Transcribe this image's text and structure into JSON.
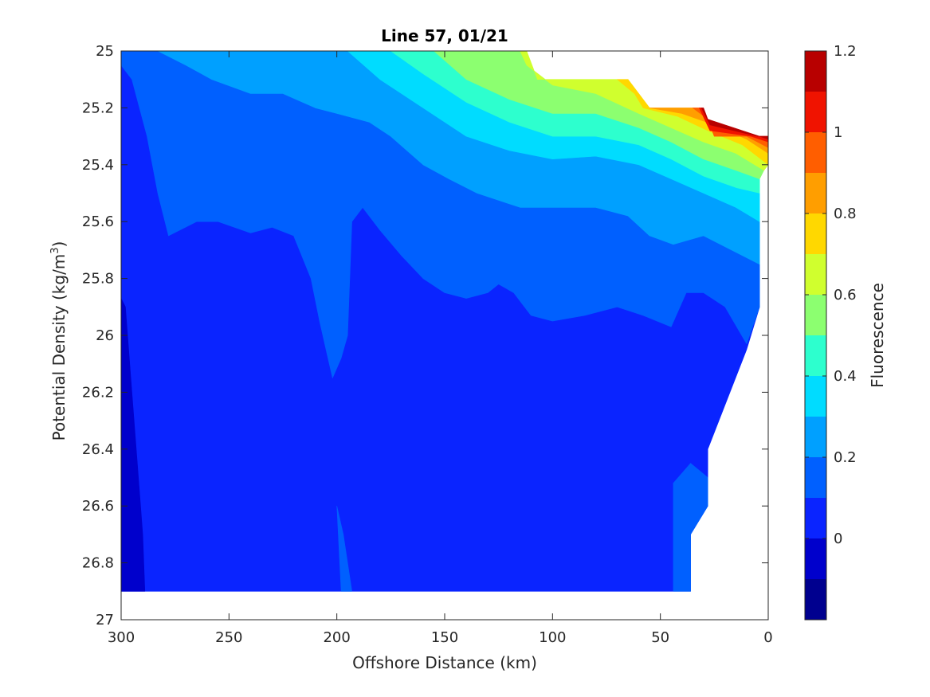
{
  "chart_data": {
    "type": "contour",
    "title": "Line 57, 01/21",
    "xlabel": "Offshore Distance (km)",
    "ylabel_main": "Potential Density (kg/m",
    "ylabel_sup": "3",
    "ylabel_end": ")",
    "colorbar_label": "Fluorescence",
    "xlim": [
      300,
      0
    ],
    "ylim": [
      25,
      27
    ],
    "x_reversed": true,
    "y_reversed": true,
    "x_ticks": [
      300,
      250,
      200,
      150,
      100,
      50,
      0
    ],
    "x_tick_labels": [
      "300",
      "250",
      "200",
      "150",
      "100",
      "50",
      "0"
    ],
    "y_ticks": [
      25,
      25.2,
      25.4,
      25.6,
      25.8,
      26,
      26.2,
      26.4,
      26.6,
      26.8,
      27
    ],
    "y_tick_labels": [
      "25",
      "25.2",
      "25.4",
      "25.6",
      "25.8",
      "26",
      "26.2",
      "26.4",
      "26.6",
      "26.8",
      "27"
    ],
    "colorbar_range": [
      -0.2,
      1.2
    ],
    "colorbar_ticks": [
      0,
      0.2,
      0.4,
      0.6,
      0.8,
      1,
      1.2
    ],
    "colorbar_tick_labels": [
      "0",
      "0.2",
      "0.4",
      "0.6",
      "0.8",
      "1",
      "1.2"
    ],
    "levels": [
      -0.2,
      -0.1,
      0,
      0.1,
      0.2,
      0.3,
      0.4,
      0.5,
      0.6,
      0.7,
      0.8,
      0.9,
      1.0,
      1.1,
      1.2
    ],
    "colormap": [
      "#00008f",
      "#0000cc",
      "#0a24ff",
      "#0060ff",
      "#00a0ff",
      "#00dcff",
      "#2dffce",
      "#8cff70",
      "#d0ff2e",
      "#ffd800",
      "#ff9e00",
      "#ff5e00",
      "#f01300",
      "#b80000"
    ],
    "data_boundary": [
      [
        300,
        25.0
      ],
      [
        205,
        25.0
      ],
      [
        202,
        25.0
      ],
      [
        195,
        25.0
      ],
      [
        145,
        25.0
      ],
      [
        112,
        25.0
      ],
      [
        107,
        25.1
      ],
      [
        65,
        25.1
      ],
      [
        55,
        25.2
      ],
      [
        30,
        25.2
      ],
      [
        25,
        25.3
      ],
      [
        0,
        25.3
      ],
      [
        0,
        25.4
      ],
      [
        4,
        25.5
      ],
      [
        4,
        25.9
      ],
      [
        10,
        26.05
      ],
      [
        28,
        26.4
      ],
      [
        28,
        26.6
      ],
      [
        36,
        26.7
      ],
      [
        36,
        26.9
      ],
      [
        300,
        26.9
      ]
    ],
    "regions": [
      {
        "level": 0.05,
        "points": [
          [
            300,
            25.0
          ],
          [
            283,
            25.0
          ],
          [
            270,
            25.05
          ],
          [
            258,
            25.1
          ],
          [
            240,
            25.15
          ],
          [
            225,
            25.15
          ],
          [
            210,
            25.2
          ],
          [
            200,
            25.22
          ],
          [
            185,
            25.25
          ],
          [
            175,
            25.3
          ],
          [
            160,
            25.4
          ],
          [
            148,
            25.45
          ],
          [
            135,
            25.5
          ],
          [
            115,
            25.55
          ],
          [
            100,
            25.55
          ],
          [
            80,
            25.55
          ],
          [
            65,
            25.58
          ],
          [
            55,
            25.65
          ],
          [
            44,
            25.68
          ],
          [
            30,
            25.65
          ],
          [
            4,
            25.75
          ],
          [
            4,
            25.9
          ],
          [
            10,
            26.05
          ],
          [
            28,
            26.4
          ],
          [
            28,
            26.6
          ],
          [
            36,
            26.7
          ],
          [
            36,
            26.9
          ],
          [
            300,
            26.9
          ]
        ]
      },
      {
        "level": -0.05,
        "points": [
          [
            300,
            25.87
          ],
          [
            300,
            26.9
          ],
          [
            289,
            26.9
          ],
          [
            290,
            26.7
          ],
          [
            292,
            26.5
          ],
          [
            295,
            26.2
          ],
          [
            297,
            26.0
          ],
          [
            298,
            25.9
          ]
        ]
      },
      {
        "level": 0.15,
        "points": [
          [
            300,
            25.0
          ],
          [
            300,
            25.05
          ],
          [
            295,
            25.1
          ],
          [
            288,
            25.3
          ],
          [
            283,
            25.5
          ],
          [
            278,
            25.65
          ],
          [
            265,
            25.6
          ],
          [
            255,
            25.6
          ],
          [
            240,
            25.64
          ],
          [
            230,
            25.62
          ],
          [
            220,
            25.65
          ],
          [
            212,
            25.8
          ],
          [
            208,
            25.95
          ],
          [
            205,
            26.05
          ],
          [
            202,
            26.15
          ],
          [
            198,
            26.08
          ],
          [
            195,
            26.0
          ],
          [
            193,
            25.6
          ],
          [
            188,
            25.55
          ],
          [
            180,
            25.63
          ],
          [
            170,
            25.72
          ],
          [
            160,
            25.8
          ],
          [
            150,
            25.85
          ],
          [
            140,
            25.87
          ],
          [
            130,
            25.85
          ],
          [
            125,
            25.82
          ],
          [
            118,
            25.85
          ],
          [
            110,
            25.93
          ],
          [
            100,
            25.95
          ],
          [
            85,
            25.93
          ],
          [
            70,
            25.9
          ],
          [
            58,
            25.93
          ],
          [
            45,
            25.97
          ],
          [
            38,
            25.85
          ],
          [
            30,
            25.85
          ],
          [
            20,
            25.9
          ],
          [
            10,
            26.03
          ],
          [
            4,
            25.9
          ],
          [
            4,
            25.75
          ],
          [
            30,
            25.65
          ],
          [
            44,
            25.68
          ],
          [
            55,
            25.65
          ],
          [
            65,
            25.58
          ],
          [
            80,
            25.55
          ],
          [
            100,
            25.55
          ],
          [
            115,
            25.55
          ],
          [
            135,
            25.5
          ],
          [
            148,
            25.45
          ],
          [
            160,
            25.4
          ],
          [
            175,
            25.3
          ],
          [
            185,
            25.25
          ],
          [
            200,
            25.22
          ],
          [
            210,
            25.2
          ],
          [
            225,
            25.15
          ],
          [
            240,
            25.15
          ],
          [
            258,
            25.1
          ],
          [
            270,
            25.05
          ],
          [
            283,
            25.0
          ]
        ]
      },
      {
        "level": 0.15,
        "points": [
          [
            44,
            26.9
          ],
          [
            44,
            26.52
          ],
          [
            36,
            26.45
          ],
          [
            28,
            26.5
          ],
          [
            28,
            26.6
          ],
          [
            36,
            26.7
          ],
          [
            36,
            26.9
          ]
        ]
      },
      {
        "level": 0.15,
        "points": [
          [
            200,
            26.6
          ],
          [
            197,
            26.7
          ],
          [
            193,
            26.9
          ],
          [
            198,
            26.9
          ]
        ]
      },
      {
        "level": 0.25,
        "points": [
          [
            283,
            25.0
          ],
          [
            270,
            25.05
          ],
          [
            258,
            25.1
          ],
          [
            240,
            25.15
          ],
          [
            225,
            25.15
          ],
          [
            210,
            25.2
          ],
          [
            200,
            25.22
          ],
          [
            185,
            25.25
          ],
          [
            175,
            25.3
          ],
          [
            160,
            25.4
          ],
          [
            148,
            25.45
          ],
          [
            135,
            25.5
          ],
          [
            115,
            25.55
          ],
          [
            100,
            25.55
          ],
          [
            80,
            25.55
          ],
          [
            65,
            25.58
          ],
          [
            55,
            25.65
          ],
          [
            44,
            25.68
          ],
          [
            30,
            25.65
          ],
          [
            4,
            25.75
          ],
          [
            4,
            25.6
          ],
          [
            15,
            25.55
          ],
          [
            30,
            25.5
          ],
          [
            45,
            25.45
          ],
          [
            60,
            25.4
          ],
          [
            80,
            25.37
          ],
          [
            100,
            25.38
          ],
          [
            120,
            25.35
          ],
          [
            140,
            25.3
          ],
          [
            160,
            25.2
          ],
          [
            180,
            25.1
          ],
          [
            195,
            25.0
          ]
        ]
      },
      {
        "level": 0.35,
        "points": [
          [
            195,
            25.0
          ],
          [
            180,
            25.1
          ],
          [
            160,
            25.2
          ],
          [
            140,
            25.3
          ],
          [
            120,
            25.35
          ],
          [
            100,
            25.38
          ],
          [
            80,
            25.37
          ],
          [
            60,
            25.4
          ],
          [
            45,
            25.45
          ],
          [
            30,
            25.5
          ],
          [
            15,
            25.55
          ],
          [
            4,
            25.6
          ],
          [
            4,
            25.5
          ],
          [
            15,
            25.48
          ],
          [
            30,
            25.44
          ],
          [
            45,
            25.38
          ],
          [
            60,
            25.33
          ],
          [
            80,
            25.3
          ],
          [
            100,
            25.3
          ],
          [
            120,
            25.25
          ],
          [
            140,
            25.18
          ],
          [
            160,
            25.08
          ],
          [
            175,
            25.0
          ]
        ]
      },
      {
        "level": 0.45,
        "points": [
          [
            175,
            25.0
          ],
          [
            160,
            25.08
          ],
          [
            140,
            25.18
          ],
          [
            120,
            25.25
          ],
          [
            100,
            25.3
          ],
          [
            80,
            25.3
          ],
          [
            60,
            25.33
          ],
          [
            45,
            25.38
          ],
          [
            30,
            25.44
          ],
          [
            15,
            25.48
          ],
          [
            4,
            25.5
          ],
          [
            4,
            25.45
          ],
          [
            15,
            25.42
          ],
          [
            30,
            25.38
          ],
          [
            45,
            25.32
          ],
          [
            60,
            25.27
          ],
          [
            80,
            25.22
          ],
          [
            100,
            25.22
          ],
          [
            120,
            25.17
          ],
          [
            140,
            25.1
          ],
          [
            155,
            25.0
          ]
        ]
      },
      {
        "level": 0.55,
        "points": [
          [
            155,
            25.0
          ],
          [
            140,
            25.1
          ],
          [
            120,
            25.17
          ],
          [
            100,
            25.22
          ],
          [
            80,
            25.22
          ],
          [
            60,
            25.27
          ],
          [
            45,
            25.32
          ],
          [
            30,
            25.38
          ],
          [
            15,
            25.42
          ],
          [
            4,
            25.45
          ],
          [
            2,
            25.42
          ],
          [
            15,
            25.36
          ],
          [
            30,
            25.32
          ],
          [
            45,
            25.27
          ],
          [
            60,
            25.22
          ],
          [
            80,
            25.15
          ],
          [
            100,
            25.12
          ],
          [
            112,
            25.05
          ],
          [
            115,
            25.0
          ]
        ]
      },
      {
        "level": 0.65,
        "points": [
          [
            115,
            25.0
          ],
          [
            112,
            25.05
          ],
          [
            100,
            25.12
          ],
          [
            80,
            25.15
          ],
          [
            60,
            25.22
          ],
          [
            45,
            25.27
          ],
          [
            30,
            25.32
          ],
          [
            15,
            25.36
          ],
          [
            2,
            25.42
          ],
          [
            0,
            25.4
          ],
          [
            12,
            25.33
          ],
          [
            28,
            25.28
          ],
          [
            42,
            25.23
          ],
          [
            58,
            25.2
          ],
          [
            62,
            25.15
          ],
          [
            70,
            25.1
          ],
          [
            107,
            25.1
          ],
          [
            112,
            25.0
          ]
        ]
      },
      {
        "level": 0.75,
        "points": [
          [
            70,
            25.1
          ],
          [
            62,
            25.15
          ],
          [
            58,
            25.2
          ],
          [
            42,
            25.23
          ],
          [
            28,
            25.28
          ],
          [
            12,
            25.33
          ],
          [
            0,
            25.4
          ],
          [
            0,
            25.36
          ],
          [
            10,
            25.31
          ],
          [
            25,
            25.26
          ],
          [
            40,
            25.22
          ],
          [
            55,
            25.2
          ],
          [
            65,
            25.1
          ]
        ]
      },
      {
        "level": 0.85,
        "points": [
          [
            55,
            25.2
          ],
          [
            40,
            25.22
          ],
          [
            25,
            25.26
          ],
          [
            10,
            25.31
          ],
          [
            0,
            25.36
          ],
          [
            0,
            25.34
          ],
          [
            10,
            25.3
          ],
          [
            25,
            25.3
          ],
          [
            28,
            25.24
          ],
          [
            35,
            25.2
          ]
        ]
      },
      {
        "level": 0.95,
        "points": [
          [
            35,
            25.2
          ],
          [
            28,
            25.24
          ],
          [
            25,
            25.3
          ],
          [
            10,
            25.3
          ],
          [
            0,
            25.34
          ],
          [
            0,
            25.32
          ],
          [
            8,
            25.3
          ],
          [
            27,
            25.28
          ],
          [
            32,
            25.2
          ]
        ]
      },
      {
        "level": 1.05,
        "points": [
          [
            32,
            25.2
          ],
          [
            27,
            25.28
          ],
          [
            8,
            25.3
          ],
          [
            0,
            25.32
          ],
          [
            0,
            25.3
          ],
          [
            5,
            25.3
          ],
          [
            27,
            25.26
          ],
          [
            31,
            25.2
          ]
        ]
      },
      {
        "level": 1.15,
        "points": [
          [
            31,
            25.2
          ],
          [
            27,
            25.26
          ],
          [
            5,
            25.3
          ],
          [
            0,
            25.3
          ],
          [
            0,
            25.31
          ],
          [
            28,
            25.24
          ],
          [
            30,
            25.2
          ]
        ]
      }
    ]
  }
}
